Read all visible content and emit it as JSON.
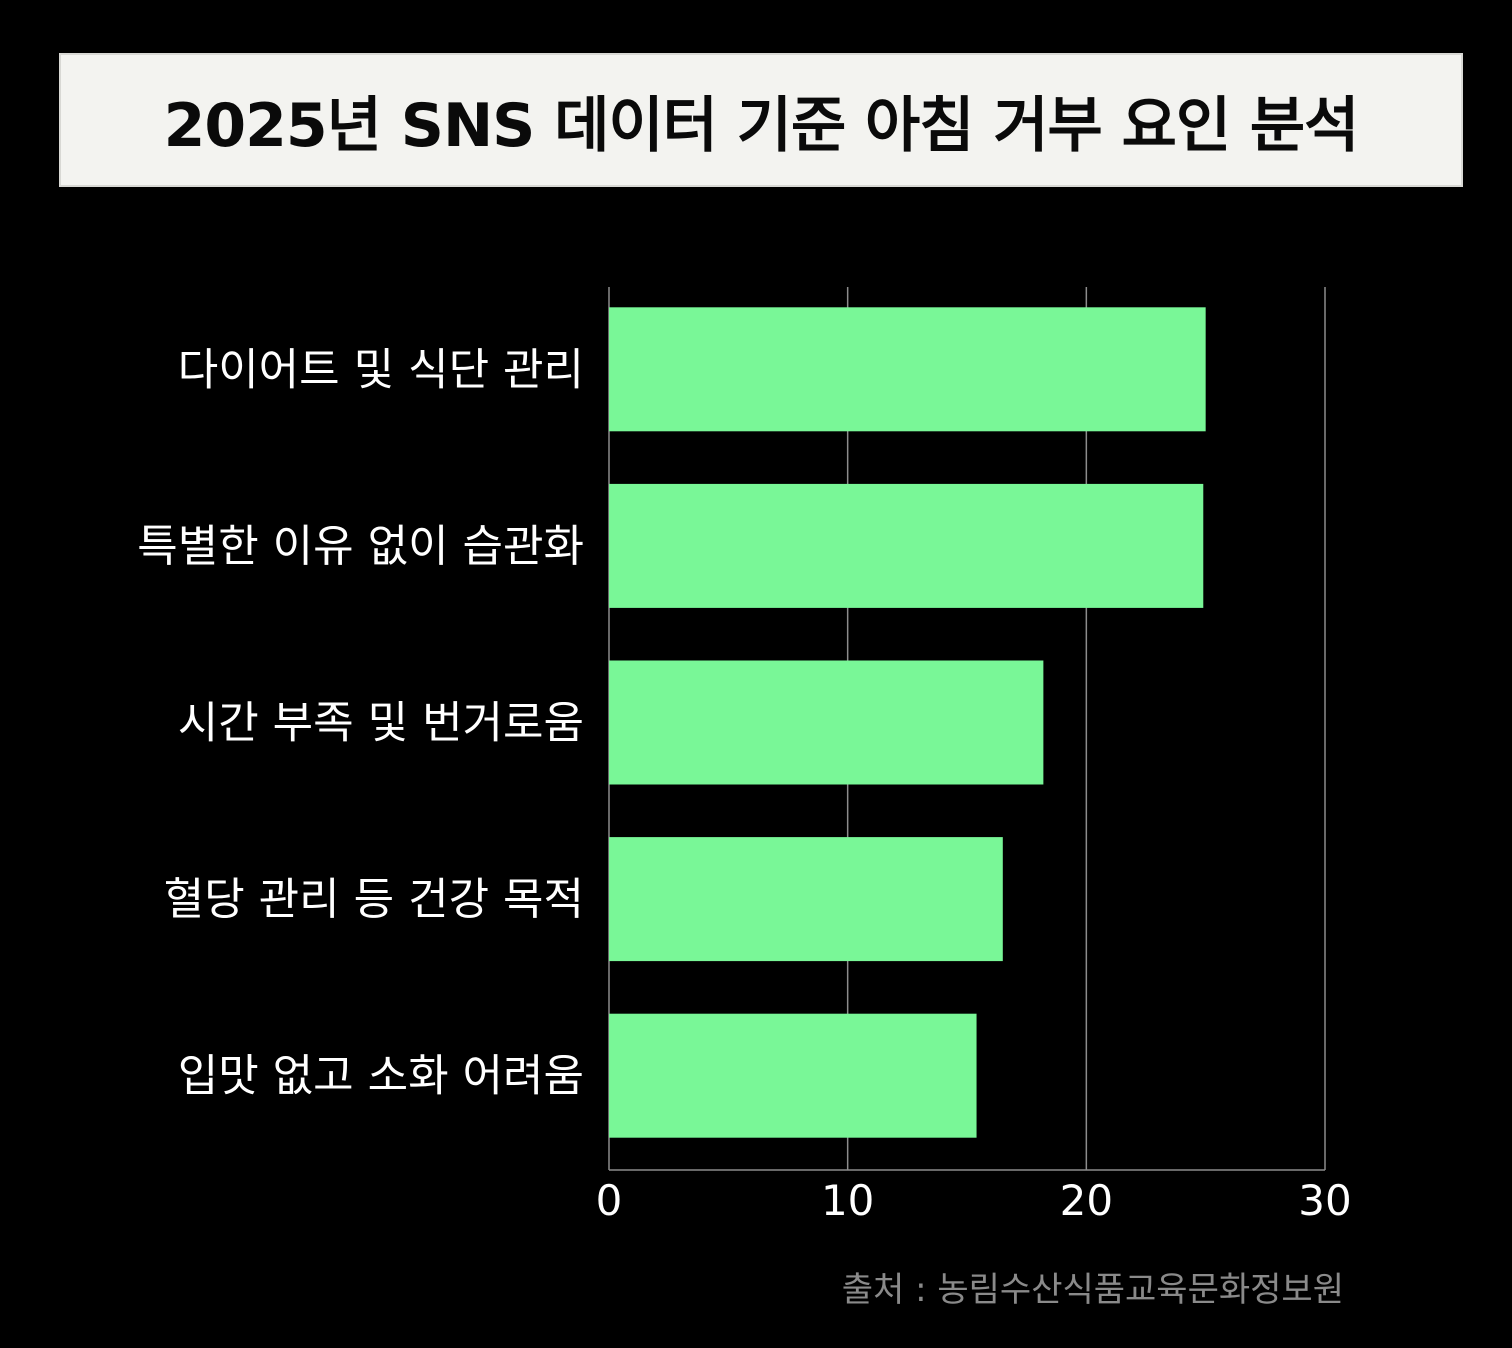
{
  "title": "2025년 SNS 데이터 기준 아침 거부 요인 분석",
  "source": "출처 : 농림수산식품교육문화정보원",
  "colors": {
    "background": "#000000",
    "bar": "#79f797",
    "grid": "#8c8c8c",
    "title_box": "#f3f3f0",
    "source_text": "#8a8a8a"
  },
  "chart_data": {
    "type": "bar",
    "orientation": "horizontal",
    "categories": [
      "다이어트 및 식단 관리",
      "특별한 이유 없이 습관화",
      "시간 부족 및 번거로움",
      "혈당 관리 등 건강 목적",
      "입맛 없고 소화 어려움"
    ],
    "values": [
      25.0,
      24.9,
      18.2,
      16.5,
      15.4
    ],
    "xlim": [
      0,
      30
    ],
    "xticks": [
      "0",
      "10",
      "20",
      "30"
    ],
    "grid": "vertical",
    "legend": "none"
  }
}
